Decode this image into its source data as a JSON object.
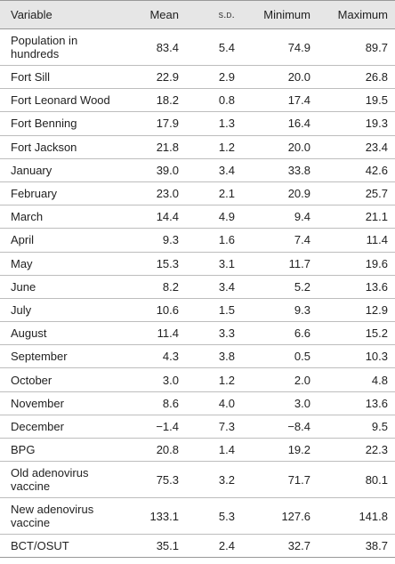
{
  "headers": {
    "variable": "Variable",
    "mean": "Mean",
    "sd": "s.d.",
    "minimum": "Minimum",
    "maximum": "Maximum"
  },
  "rows": [
    {
      "variable": "Population in hundreds",
      "mean": "83.4",
      "sd": "5.4",
      "min": "74.9",
      "max": "89.7"
    },
    {
      "variable": "Fort Sill",
      "mean": "22.9",
      "sd": "2.9",
      "min": "20.0",
      "max": "26.8"
    },
    {
      "variable": "Fort Leonard Wood",
      "mean": "18.2",
      "sd": "0.8",
      "min": "17.4",
      "max": "19.5"
    },
    {
      "variable": "Fort Benning",
      "mean": "17.9",
      "sd": "1.3",
      "min": "16.4",
      "max": "19.3"
    },
    {
      "variable": "Fort Jackson",
      "mean": "21.8",
      "sd": "1.2",
      "min": "20.0",
      "max": "23.4"
    },
    {
      "variable": "January",
      "mean": "39.0",
      "sd": "3.4",
      "min": "33.8",
      "max": "42.6"
    },
    {
      "variable": "February",
      "mean": "23.0",
      "sd": "2.1",
      "min": "20.9",
      "max": "25.7"
    },
    {
      "variable": "March",
      "mean": "14.4",
      "sd": "4.9",
      "min": "9.4",
      "max": "21.1"
    },
    {
      "variable": "April",
      "mean": "9.3",
      "sd": "1.6",
      "min": "7.4",
      "max": "11.4"
    },
    {
      "variable": "May",
      "mean": "15.3",
      "sd": "3.1",
      "min": "11.7",
      "max": "19.6"
    },
    {
      "variable": "June",
      "mean": "8.2",
      "sd": "3.4",
      "min": "5.2",
      "max": "13.6"
    },
    {
      "variable": "July",
      "mean": "10.6",
      "sd": "1.5",
      "min": "9.3",
      "max": "12.9"
    },
    {
      "variable": "August",
      "mean": "11.4",
      "sd": "3.3",
      "min": "6.6",
      "max": "15.2"
    },
    {
      "variable": "September",
      "mean": "4.3",
      "sd": "3.8",
      "min": "0.5",
      "max": "10.3"
    },
    {
      "variable": "October",
      "mean": "3.0",
      "sd": "1.2",
      "min": "2.0",
      "max": "4.8"
    },
    {
      "variable": "November",
      "mean": "8.6",
      "sd": "4.0",
      "min": "3.0",
      "max": "13.6"
    },
    {
      "variable": "December",
      "mean": "−1.4",
      "sd": "7.3",
      "min": "−8.4",
      "max": "9.5"
    },
    {
      "variable": "BPG",
      "mean": "20.8",
      "sd": "1.4",
      "min": "19.2",
      "max": "22.3"
    },
    {
      "variable": "Old adenovirus vaccine",
      "mean": "75.3",
      "sd": "3.2",
      "min": "71.7",
      "max": "80.1"
    },
    {
      "variable": "New adenovirus vaccine",
      "mean": "133.1",
      "sd": "5.3",
      "min": "127.6",
      "max": "141.8"
    },
    {
      "variable": "BCT/OSUT",
      "mean": "35.1",
      "sd": "2.4",
      "min": "32.7",
      "max": "38.7"
    }
  ]
}
